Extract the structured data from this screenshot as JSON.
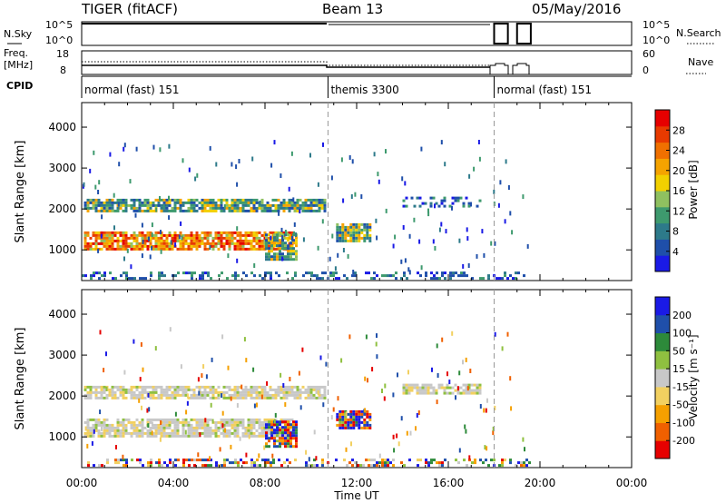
{
  "header": {
    "radar": "TIGER (fitACF)",
    "beam": "Beam 13",
    "date": "05/May/2016"
  },
  "top_panels": {
    "nsky_label": "N.Sky",
    "nsky_ticks": [
      "10^5",
      "10^0"
    ],
    "nsearch_label": "N.Search",
    "freq_label_1": "Freq.",
    "freq_label_2": "[MHz]",
    "freq_ticks": [
      "18",
      "8"
    ],
    "nave_ticks": [
      "60",
      "0"
    ],
    "nave_label": "Nave",
    "cpid_label": "CPID",
    "cpid_segments": [
      {
        "label": "normal (fast) 151",
        "start": 0,
        "end": 10.75
      },
      {
        "label": "themis 3300",
        "start": 10.75,
        "end": 18
      },
      {
        "label": "normal (fast) 151",
        "start": 18,
        "end": 24
      }
    ],
    "search_boxes": [
      [
        18.0,
        18.6
      ],
      [
        19.0,
        19.6
      ]
    ]
  },
  "chart_data": [
    {
      "type": "heatmap",
      "name": "power-panel",
      "xlabel": "",
      "ylabel": "Slant Range [km]",
      "xlim": [
        0,
        24
      ],
      "ylim": [
        250,
        4600
      ],
      "yticks": [
        1000,
        2000,
        3000,
        4000
      ],
      "colorbar": {
        "label": "Power [dB]",
        "ticks": [
          "4",
          "8",
          "12",
          "16",
          "20",
          "24",
          "28"
        ],
        "colors": [
          "#1a1ae6",
          "#1f4faa",
          "#2d7a8a",
          "#3e9a6e",
          "#8fc060",
          "#f2d000",
          "#f5a300",
          "#f07000",
          "#e83a00",
          "#e60000"
        ]
      },
      "regions": [
        {
          "x": [
            0.1,
            9.2
          ],
          "y": [
            1050,
            1450
          ],
          "level": "high"
        },
        {
          "x": [
            0.1,
            10.6
          ],
          "y": [
            1950,
            2250
          ],
          "level": "medium"
        },
        {
          "x": [
            8.0,
            9.4
          ],
          "y": [
            800,
            1400
          ],
          "level": "medium"
        },
        {
          "x": [
            11.1,
            12.6
          ],
          "y": [
            1200,
            1650
          ],
          "level": "medium"
        },
        {
          "x": [
            14.0,
            17.4
          ],
          "y": [
            2050,
            2300
          ],
          "level": "low"
        },
        {
          "x": [
            0.0,
            19.6
          ],
          "y": [
            280,
            470
          ],
          "level": "low"
        }
      ]
    },
    {
      "type": "heatmap",
      "name": "velocity-panel",
      "xlabel": "Time UT",
      "ylabel": "Slant Range [km]",
      "xlim": [
        0,
        24
      ],
      "ylim": [
        250,
        4600
      ],
      "yticks": [
        1000,
        2000,
        3000,
        4000
      ],
      "xticks": [
        "00:00",
        "04:00",
        "08:00",
        "12:00",
        "16:00",
        "20:00",
        "00:00"
      ],
      "colorbar": {
        "label": "Velocity [m s⁻¹]",
        "ticks": [
          "-200",
          "-100",
          "-50",
          "-15",
          "15",
          "50",
          "100",
          "200"
        ],
        "colors": [
          "#e60000",
          "#f06000",
          "#f5a000",
          "#f2d060",
          "#c8c8c8",
          "#8fc040",
          "#2d8a3a",
          "#1f4faa",
          "#1a1ae6"
        ]
      },
      "regions": [
        {
          "x": [
            0.1,
            9.2
          ],
          "y": [
            1050,
            1450
          ],
          "level": "gray"
        },
        {
          "x": [
            0.1,
            10.6
          ],
          "y": [
            1950,
            2250
          ],
          "level": "gray"
        },
        {
          "x": [
            8.0,
            9.4
          ],
          "y": [
            800,
            1400
          ],
          "level": "blue"
        },
        {
          "x": [
            11.1,
            12.6
          ],
          "y": [
            1200,
            1650
          ],
          "level": "blue"
        },
        {
          "x": [
            14.0,
            17.4
          ],
          "y": [
            2050,
            2300
          ],
          "level": "gray"
        },
        {
          "x": [
            0.0,
            19.6
          ],
          "y": [
            280,
            470
          ],
          "level": "mixed"
        }
      ]
    }
  ],
  "dashed_lines": [
    10.75,
    18.0
  ]
}
